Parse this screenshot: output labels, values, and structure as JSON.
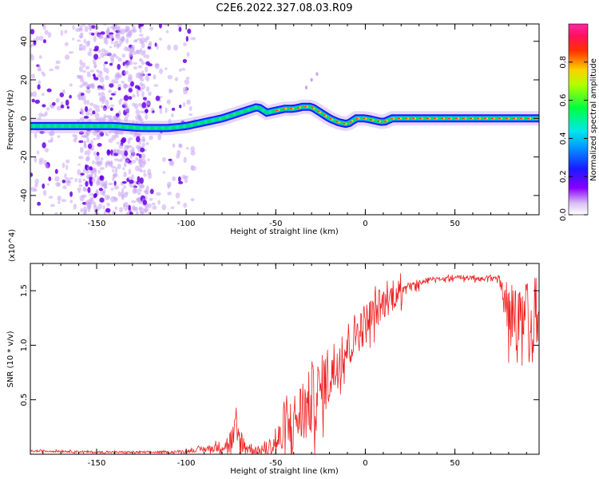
{
  "figure_title": "C2E6.2022.327.08.03.R09",
  "colors": {
    "snr_line": "#ee2222",
    "ridge_core": "#ff3030",
    "ridge_mid": "#00e060",
    "ridge_edge": "#1a1aff",
    "scatter": "#8a2be2"
  },
  "chart_data": [
    {
      "type": "heatmap",
      "title": "C2E6.2022.327.08.03.R09",
      "xlabel": "Height of straight line (km)",
      "ylabel": "Frequency (Hz)",
      "xlim": [
        -187,
        97
      ],
      "ylim": [
        -50,
        49
      ],
      "xticks": [
        -150,
        -100,
        -50,
        0,
        50
      ],
      "yticks": [
        -40,
        -20,
        0,
        20,
        40
      ],
      "xtick_labels": [
        "-150",
        "-100",
        "-50",
        "0",
        "50"
      ],
      "ytick_labels": [
        "-40",
        "-20",
        "0",
        "20",
        "40"
      ],
      "colorbar": {
        "label": "Normalized spectral amplitude",
        "range": [
          0,
          1
        ],
        "ticks": [
          0.0,
          0.2,
          0.4,
          0.6,
          0.8
        ],
        "tick_labels": [
          "0.0",
          "0.2",
          "0.4",
          "0.6",
          "0.8"
        ],
        "colormap": "rainbow (violet → blue → cyan → green → yellow → red → magenta)"
      },
      "ridge": {
        "x": [
          -187,
          -170,
          -155,
          -140,
          -125,
          -110,
          -100,
          -90,
          -80,
          -70,
          -60,
          -55,
          -50,
          -45,
          -40,
          -35,
          -30,
          -25,
          -20,
          -15,
          -10,
          -5,
          0,
          5,
          10,
          15,
          20,
          30,
          40,
          50,
          60,
          70,
          80,
          90,
          97
        ],
        "y": [
          -4,
          -4,
          -4,
          -4,
          -5,
          -5,
          -4,
          -2,
          0,
          3,
          6,
          3,
          4,
          5,
          5,
          6,
          6,
          3,
          0,
          -2,
          -3,
          0,
          0,
          -1,
          -2,
          0,
          0,
          0,
          0,
          0,
          0,
          0,
          0,
          0,
          0
        ],
        "peak_amplitude_x_range": [
          -50,
          97
        ]
      },
      "scatter_region_x": [
        -187,
        -120
      ]
    },
    {
      "type": "line",
      "title": "",
      "xlabel": "Height of straight line (km)",
      "ylabel": "SNR (10 * v/v)",
      "y_multiplier": "(x10^4)",
      "xlim": [
        -187,
        97
      ],
      "ylim": [
        0,
        1.75
      ],
      "xticks": [
        -150,
        -100,
        -50,
        0,
        50
      ],
      "yticks": [
        0.5,
        1.0,
        1.5
      ],
      "xtick_labels": [
        "-150",
        "-100",
        "-50",
        "0",
        "50"
      ],
      "ytick_labels": [
        "0.5",
        "1.0",
        "1.5"
      ],
      "series": [
        {
          "x": [
            -187,
            -170,
            -150,
            -130,
            -110,
            -100,
            -95,
            -90,
            -85,
            -80,
            -77,
            -75,
            -72,
            -70,
            -67,
            -65,
            -62,
            -60,
            -55,
            -52,
            -50,
            -47,
            -45,
            -42,
            -40,
            -37,
            -35,
            -32,
            -30,
            -27,
            -25,
            -22,
            -20,
            -17,
            -15,
            -12,
            -10,
            -7,
            -5,
            -2,
            0,
            3,
            5,
            8,
            10,
            15,
            20,
            25,
            30,
            35,
            40,
            45,
            50,
            55,
            60,
            65,
            70,
            75,
            78,
            80,
            82,
            84,
            86,
            88,
            90,
            92,
            94,
            97
          ],
          "y_base": [
            0.03,
            0.03,
            0.02,
            0.02,
            0.02,
            0.03,
            0.04,
            0.05,
            0.06,
            0.08,
            0.1,
            0.12,
            0.2,
            0.14,
            0.08,
            0.06,
            0.05,
            0.04,
            0.05,
            0.08,
            0.12,
            0.16,
            0.24,
            0.28,
            0.32,
            0.38,
            0.42,
            0.46,
            0.52,
            0.56,
            0.62,
            0.7,
            0.78,
            0.82,
            0.9,
            0.98,
            1.02,
            1.08,
            1.14,
            1.18,
            1.22,
            1.28,
            1.32,
            1.36,
            1.4,
            1.46,
            1.52,
            1.56,
            1.58,
            1.6,
            1.61,
            1.62,
            1.62,
            1.62,
            1.62,
            1.62,
            1.62,
            1.62,
            1.62,
            1.62,
            1.62,
            1.62,
            1.62,
            1.62,
            1.62,
            1.62,
            1.62,
            1.62
          ],
          "y_spread": [
            0.02,
            0.02,
            0.02,
            0.02,
            0.02,
            0.03,
            0.04,
            0.06,
            0.08,
            0.12,
            0.18,
            0.3,
            0.4,
            0.3,
            0.18,
            0.12,
            0.1,
            0.08,
            0.12,
            0.2,
            0.28,
            0.4,
            0.5,
            0.55,
            0.55,
            0.6,
            0.62,
            0.65,
            0.65,
            0.65,
            0.62,
            0.6,
            0.6,
            0.55,
            0.5,
            0.5,
            0.45,
            0.45,
            0.4,
            0.4,
            0.4,
            0.35,
            0.35,
            0.32,
            0.3,
            0.28,
            0.22,
            0.15,
            0.1,
            0.06,
            0.05,
            0.05,
            0.05,
            0.05,
            0.05,
            0.05,
            0.05,
            0.08,
            0.4,
            0.8,
            0.85,
            0.8,
            0.85,
            0.9,
            0.9,
            0.85,
            0.8,
            0.6
          ]
        }
      ]
    }
  ]
}
